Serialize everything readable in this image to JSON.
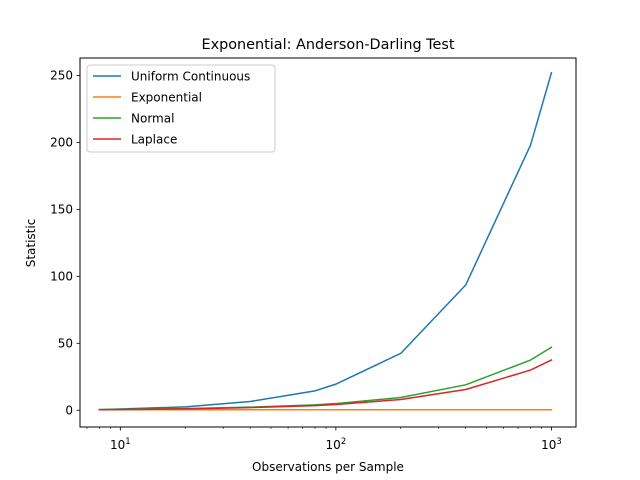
{
  "chart_data": {
    "type": "line",
    "title": "Exponential: Anderson-Darling Test",
    "xlabel": "Observations per Sample",
    "ylabel": "Statistic",
    "xscale": "log",
    "xlim": [
      6.5,
      1300
    ],
    "ylim": [
      -12.5,
      263
    ],
    "x": [
      8,
      20,
      40,
      80,
      100,
      200,
      400,
      800,
      1000
    ],
    "x_ticks": [
      {
        "value": 10,
        "base": "10",
        "exp": "1"
      },
      {
        "value": 100,
        "base": "10",
        "exp": "2"
      },
      {
        "value": 1000,
        "base": "10",
        "exp": "3"
      }
    ],
    "y_ticks": [
      0,
      50,
      100,
      150,
      200,
      250
    ],
    "grid": false,
    "legend_position": "top-left",
    "series": [
      {
        "name": "Uniform Continuous",
        "color": "#1f77b4",
        "values": [
          0.5,
          2.5,
          6.5,
          14.5,
          19.5,
          42.5,
          93.5,
          198,
          252
        ]
      },
      {
        "name": "Exponential",
        "color": "#ff7f0e",
        "values": [
          0.4,
          0.4,
          0.4,
          0.4,
          0.4,
          0.4,
          0.4,
          0.4,
          0.4
        ]
      },
      {
        "name": "Normal",
        "color": "#2ca02c",
        "values": [
          0.5,
          1.2,
          2.3,
          4.0,
          5.0,
          9.5,
          19.0,
          37.5,
          47.0
        ]
      },
      {
        "name": "Laplace",
        "color": "#d62728",
        "values": [
          0.4,
          1.0,
          2.0,
          3.5,
          4.3,
          8.0,
          15.5,
          30.0,
          37.5
        ]
      }
    ]
  }
}
